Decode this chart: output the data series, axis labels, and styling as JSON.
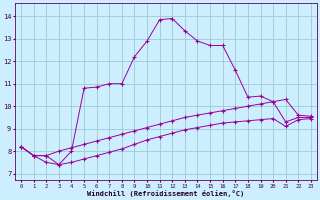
{
  "xlabel": "Windchill (Refroidissement éolien,°C)",
  "background_color": "#cceeff",
  "grid_color": "#99cccc",
  "line_color": "#990099",
  "x_ticks": [
    0,
    1,
    2,
    3,
    4,
    5,
    6,
    7,
    8,
    9,
    10,
    11,
    12,
    13,
    14,
    15,
    16,
    17,
    18,
    19,
    20,
    21,
    22,
    23
  ],
  "y_ticks": [
    7,
    8,
    9,
    10,
    11,
    12,
    13,
    14
  ],
  "ylim": [
    6.7,
    14.6
  ],
  "xlim": [
    -0.5,
    23.5
  ],
  "series1": [
    8.2,
    7.8,
    7.8,
    7.4,
    8.0,
    10.8,
    10.85,
    11.0,
    11.0,
    12.2,
    12.9,
    13.85,
    13.9,
    13.35,
    12.9,
    12.7,
    12.7,
    11.6,
    10.4,
    10.45,
    10.2,
    9.3,
    9.5,
    9.5
  ],
  "series2": [
    8.2,
    7.8,
    7.8,
    8.0,
    8.15,
    8.3,
    8.45,
    8.6,
    8.75,
    8.9,
    9.05,
    9.2,
    9.35,
    9.5,
    9.6,
    9.7,
    9.8,
    9.9,
    10.0,
    10.1,
    10.2,
    10.3,
    9.6,
    9.55
  ],
  "series3": [
    8.2,
    7.8,
    7.5,
    7.4,
    7.5,
    7.65,
    7.8,
    7.95,
    8.1,
    8.3,
    8.5,
    8.65,
    8.8,
    8.95,
    9.05,
    9.15,
    9.25,
    9.3,
    9.35,
    9.4,
    9.45,
    9.1,
    9.4,
    9.45
  ]
}
